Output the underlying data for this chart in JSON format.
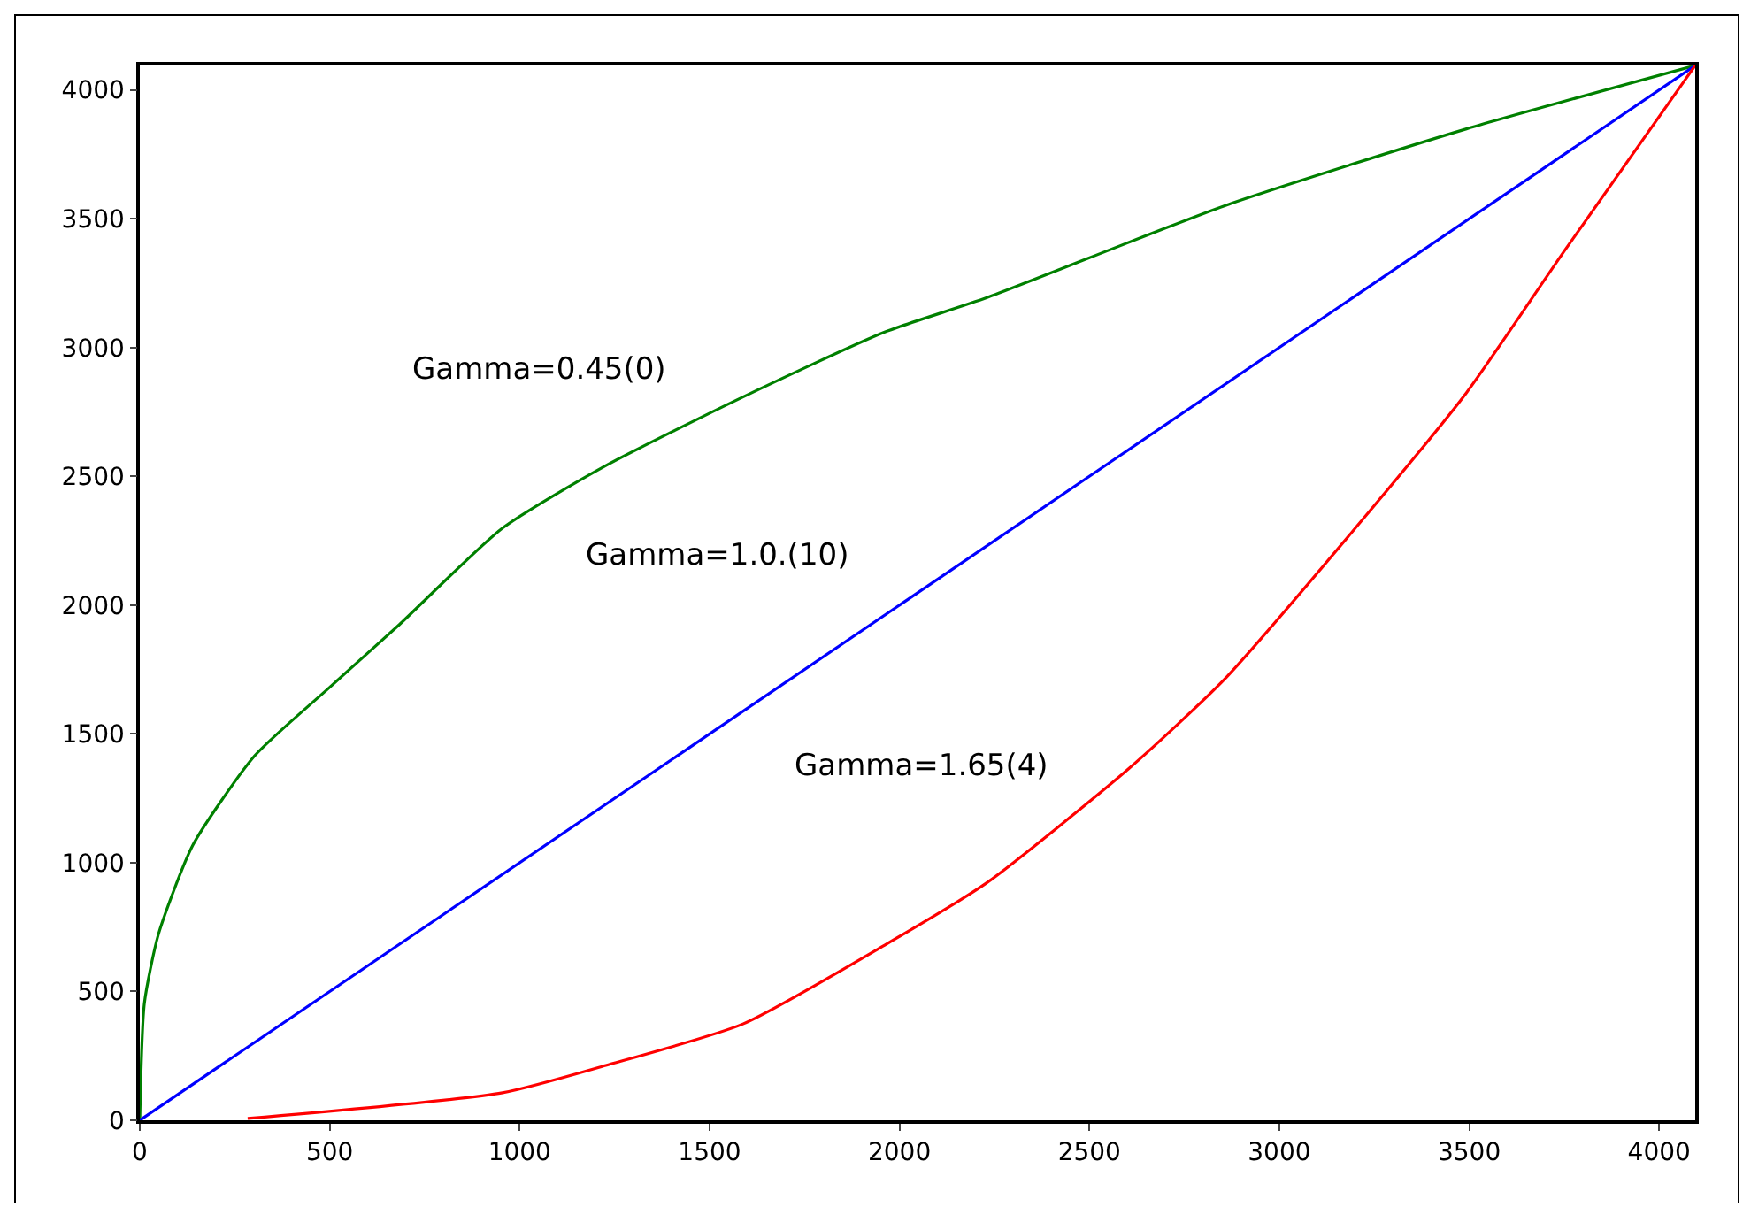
{
  "chart_data": {
    "type": "line",
    "xlim": [
      0,
      4095
    ],
    "ylim": [
      0,
      4095
    ],
    "xticks": [
      0,
      500,
      1000,
      1500,
      2000,
      2500,
      3000,
      3500,
      4000
    ],
    "yticks": [
      0,
      500,
      1000,
      1500,
      2000,
      2500,
      3000,
      3500,
      4000
    ],
    "grid": false,
    "legend": false,
    "marker": "none",
    "line_style": "solid",
    "series": [
      {
        "name": "Gamma=0.45(0)",
        "color": "#008000",
        "x": [
          0,
          12,
          49,
          140,
          303,
          502,
          683,
          955,
          1225,
          1588,
          1961,
          2229,
          2855,
          3493,
          4095
        ],
        "values": [
          0,
          454,
          722,
          1069,
          1416,
          1684,
          1924,
          2299,
          2540,
          2808,
          3060,
          3193,
          3550,
          3849,
          4095
        ]
      },
      {
        "name": "Gamma=1.0.(10)",
        "color": "#0000ff",
        "x": [
          0,
          4095
        ],
        "values": [
          0,
          4095
        ]
      },
      {
        "name": "Gamma=1.65(4)",
        "color": "#ff0000",
        "x": [
          284,
          955,
          1227,
          1588,
          1961,
          2229,
          2606,
          2855,
          3214,
          3493,
          3752,
          4095
        ],
        "values": [
          7,
          107,
          213,
          374,
          680,
          921,
          1368,
          1711,
          2323,
          2825,
          3378,
          4095
        ]
      }
    ]
  }
}
